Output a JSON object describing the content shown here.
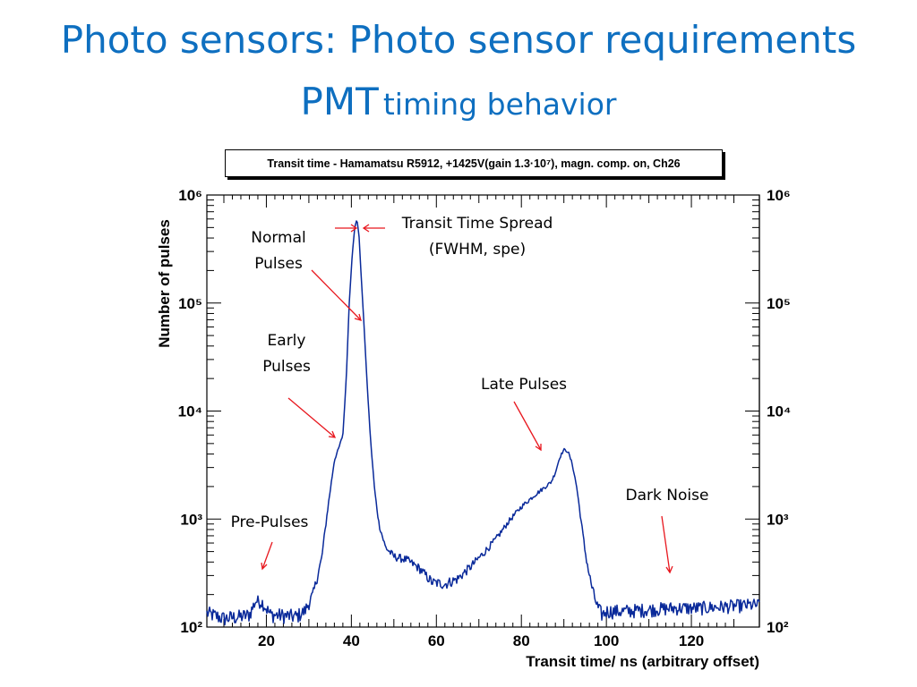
{
  "slide": {
    "title_line1": "Photo sensors: Photo sensor requirements",
    "title_line2_big": "PMT",
    "title_line2_small": "timing behavior"
  },
  "chart_data": {
    "type": "line",
    "histogram_title": "Transit time - Hamamatsu R5912, +1425V(gain 1.3·10⁷), magn. comp. on, Ch26",
    "xlabel": "Transit time/ ns (arbitrary offset)",
    "ylabel": "Number of pulses",
    "x_ticks": [
      "20",
      "40",
      "60",
      "80",
      "100",
      "120"
    ],
    "y_ticks": [
      "10²",
      "10³",
      "10⁴",
      "10⁵",
      "10⁶"
    ],
    "xlim": [
      6,
      136
    ],
    "ylim": [
      100,
      1000000
    ],
    "yscale": "log",
    "line_color": "#0a2a9a",
    "annotation_color": "#e8171e",
    "grid": false,
    "series": [
      {
        "x": [
          6,
          10,
          14,
          16,
          17.5,
          19,
          21,
          24,
          27,
          29,
          31,
          33,
          34.5,
          36,
          37,
          38,
          38.8,
          39.5,
          40.2,
          40.8,
          41.3,
          41.8,
          42.3,
          43,
          43.7,
          44.5,
          45.5,
          46.5,
          48,
          50,
          53,
          56,
          59,
          62,
          65,
          68,
          71,
          74,
          77,
          80,
          83,
          85,
          87,
          88,
          89,
          90,
          91,
          92,
          93,
          94,
          95,
          96,
          97,
          98,
          99,
          100,
          104,
          110,
          116,
          122,
          128,
          134,
          136
        ],
        "y": [
          135,
          120,
          125,
          130,
          175,
          170,
          130,
          128,
          125,
          140,
          200,
          430,
          1300,
          3500,
          4500,
          6000,
          20000,
          100000,
          280000,
          500000,
          600000,
          420000,
          180000,
          60000,
          18000,
          5500,
          1800,
          900,
          550,
          450,
          420,
          350,
          260,
          250,
          280,
          360,
          480,
          650,
          950,
          1300,
          1650,
          1900,
          2200,
          2700,
          3700,
          4400,
          4200,
          3200,
          2000,
          1000,
          500,
          300,
          200,
          150,
          130,
          140,
          140,
          145,
          150,
          150,
          155,
          160,
          160
        ]
      }
    ],
    "annotations": [
      "Normal Pulses",
      "Transit Time Spread (FWHM, spe)",
      "Early Pulses",
      "Late Pulses",
      "Dark Noise",
      "Pre-Pulses"
    ]
  },
  "annotations": {
    "normal_1": "Normal",
    "normal_2": "Pulses",
    "tts_1": "Transit Time Spread",
    "tts_2": "(FWHM, spe)",
    "early_1": "Early",
    "early_2": "Pulses",
    "late": "Late Pulses",
    "dark": "Dark Noise",
    "pre": "Pre-Pulses"
  }
}
